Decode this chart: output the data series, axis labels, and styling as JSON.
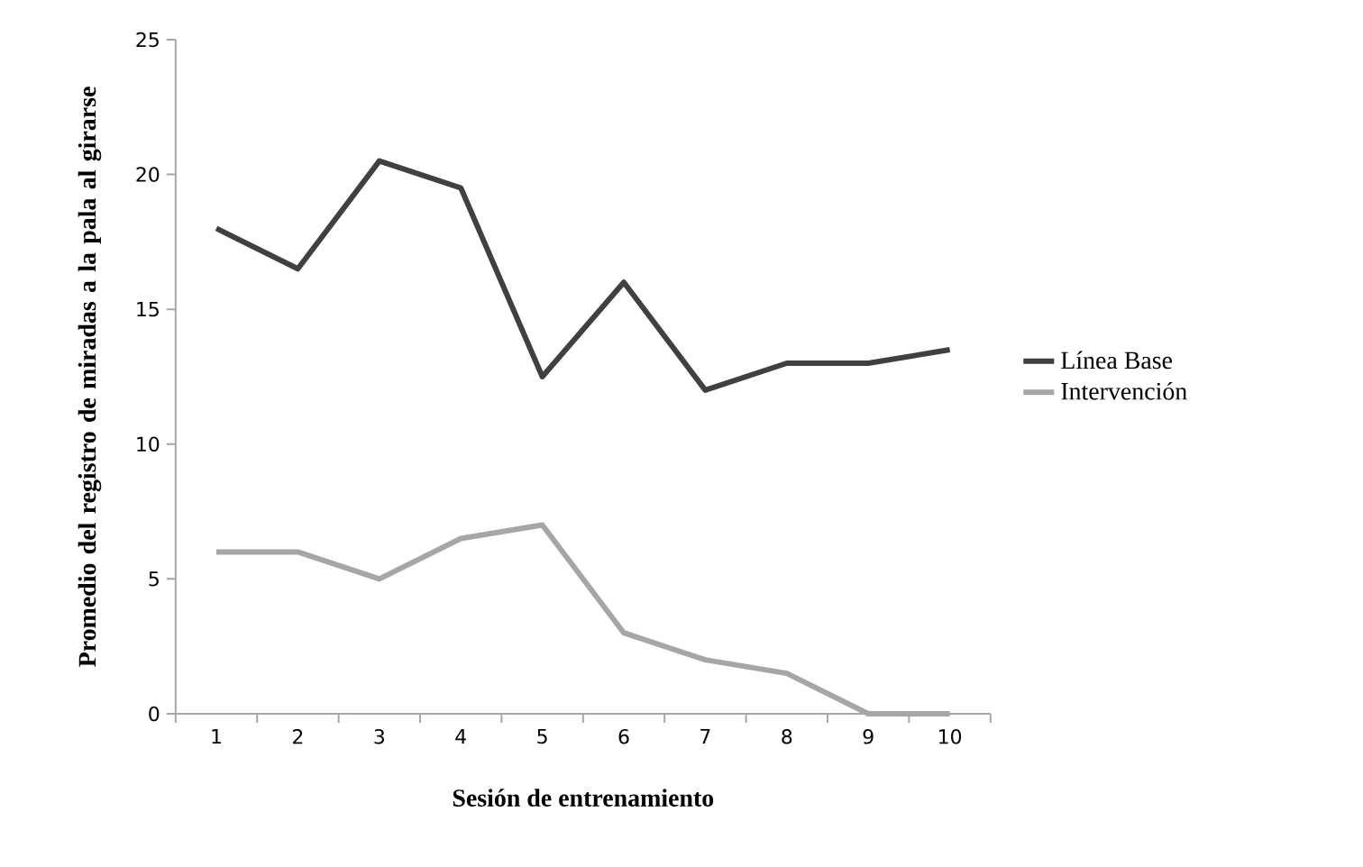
{
  "chart_data": {
    "type": "line",
    "xlabel": "Sesión de entrenamiento",
    "ylabel": "Promedio del registro de miradas a la pala al girarse",
    "categories": [
      "1",
      "2",
      "3",
      "4",
      "5",
      "6",
      "7",
      "8",
      "9",
      "10"
    ],
    "series": [
      {
        "name": "Línea Base",
        "color": "#404040",
        "values": [
          18,
          16.5,
          20.5,
          19.5,
          12.5,
          16,
          12,
          13,
          13,
          13.5
        ]
      },
      {
        "name": "Intervención",
        "color": "#a6a6a6",
        "values": [
          6,
          6,
          5,
          6.5,
          7,
          3,
          2,
          1.5,
          0,
          0
        ]
      }
    ],
    "ylim": [
      0,
      25
    ],
    "yticks": [
      0,
      5,
      10,
      15,
      20,
      25
    ],
    "grid": false,
    "legend": "right",
    "marker": "none",
    "line_style": "solid"
  }
}
